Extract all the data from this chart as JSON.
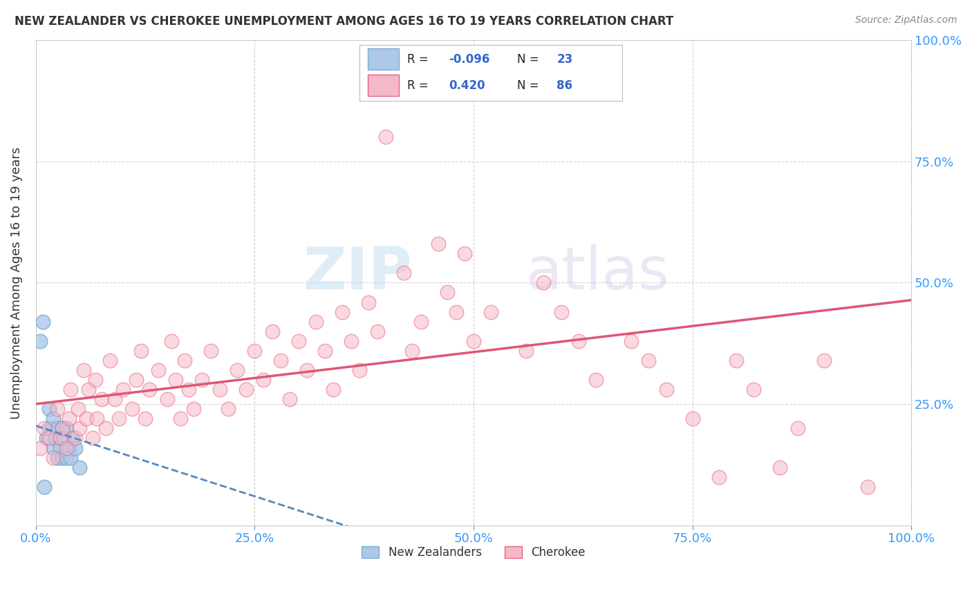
{
  "title": "NEW ZEALANDER VS CHEROKEE UNEMPLOYMENT AMONG AGES 16 TO 19 YEARS CORRELATION CHART",
  "source": "Source: ZipAtlas.com",
  "ylabel": "Unemployment Among Ages 16 to 19 years",
  "xlim": [
    0.0,
    1.0
  ],
  "ylim": [
    0.0,
    1.0
  ],
  "xticks": [
    0.0,
    0.25,
    0.5,
    0.75,
    1.0
  ],
  "yticks": [
    0.0,
    0.25,
    0.5,
    0.75,
    1.0
  ],
  "xticklabels": [
    "0.0%",
    "25.0%",
    "50.0%",
    "75.0%",
    "100.0%"
  ],
  "ylabels_left": [
    "",
    "",
    "",
    "",
    ""
  ],
  "ylabels_right": [
    "100.0%",
    "75.0%",
    "50.0%",
    "25.0%",
    ""
  ],
  "nz_R": -0.096,
  "nz_N": 23,
  "cherokee_R": 0.42,
  "cherokee_N": 86,
  "nz_color": "#adc8e8",
  "cherokee_color": "#f5b8c8",
  "nz_edge_color": "#7aafd4",
  "cherokee_edge_color": "#e8637f",
  "nz_line_color": "#5588bb",
  "cherokee_line_color": "#e05575",
  "watermark_zip": "ZIP",
  "watermark_atlas": "atlas",
  "background_color": "#ffffff",
  "nz_scatter_x": [
    0.005,
    0.008,
    0.01,
    0.012,
    0.015,
    0.015,
    0.018,
    0.02,
    0.02,
    0.022,
    0.025,
    0.025,
    0.028,
    0.03,
    0.03,
    0.032,
    0.035,
    0.035,
    0.038,
    0.04,
    0.042,
    0.045,
    0.05
  ],
  "nz_scatter_y": [
    0.38,
    0.42,
    0.08,
    0.18,
    0.2,
    0.24,
    0.2,
    0.16,
    0.22,
    0.18,
    0.14,
    0.2,
    0.16,
    0.14,
    0.2,
    0.18,
    0.14,
    0.2,
    0.16,
    0.14,
    0.18,
    0.16,
    0.12
  ],
  "cherokee_scatter_x": [
    0.005,
    0.01,
    0.015,
    0.02,
    0.025,
    0.028,
    0.03,
    0.035,
    0.038,
    0.04,
    0.045,
    0.048,
    0.05,
    0.055,
    0.058,
    0.06,
    0.065,
    0.068,
    0.07,
    0.075,
    0.08,
    0.085,
    0.09,
    0.095,
    0.1,
    0.11,
    0.115,
    0.12,
    0.125,
    0.13,
    0.14,
    0.15,
    0.155,
    0.16,
    0.165,
    0.17,
    0.175,
    0.18,
    0.19,
    0.2,
    0.21,
    0.22,
    0.23,
    0.24,
    0.25,
    0.26,
    0.27,
    0.28,
    0.29,
    0.3,
    0.31,
    0.32,
    0.33,
    0.34,
    0.35,
    0.36,
    0.37,
    0.38,
    0.39,
    0.4,
    0.42,
    0.43,
    0.44,
    0.46,
    0.47,
    0.48,
    0.49,
    0.5,
    0.52,
    0.54,
    0.56,
    0.58,
    0.6,
    0.62,
    0.64,
    0.68,
    0.7,
    0.72,
    0.75,
    0.78,
    0.8,
    0.82,
    0.85,
    0.87,
    0.9,
    0.95
  ],
  "cherokee_scatter_y": [
    0.16,
    0.2,
    0.18,
    0.14,
    0.24,
    0.18,
    0.2,
    0.16,
    0.22,
    0.28,
    0.18,
    0.24,
    0.2,
    0.32,
    0.22,
    0.28,
    0.18,
    0.3,
    0.22,
    0.26,
    0.2,
    0.34,
    0.26,
    0.22,
    0.28,
    0.24,
    0.3,
    0.36,
    0.22,
    0.28,
    0.32,
    0.26,
    0.38,
    0.3,
    0.22,
    0.34,
    0.28,
    0.24,
    0.3,
    0.36,
    0.28,
    0.24,
    0.32,
    0.28,
    0.36,
    0.3,
    0.4,
    0.34,
    0.26,
    0.38,
    0.32,
    0.42,
    0.36,
    0.28,
    0.44,
    0.38,
    0.32,
    0.46,
    0.4,
    0.8,
    0.52,
    0.36,
    0.42,
    0.58,
    0.48,
    0.44,
    0.56,
    0.38,
    0.44,
    0.9,
    0.36,
    0.5,
    0.44,
    0.38,
    0.3,
    0.38,
    0.34,
    0.28,
    0.22,
    0.1,
    0.34,
    0.28,
    0.12,
    0.2,
    0.34,
    0.08
  ]
}
